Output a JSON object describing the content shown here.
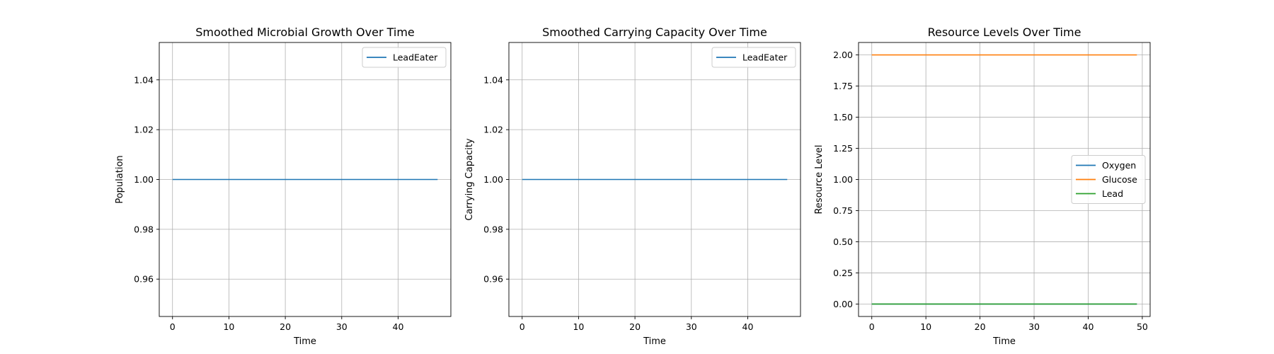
{
  "colors": {
    "background": "#ffffff",
    "grid": "#b0b0b0",
    "spine": "#000000",
    "legend_border": "#cccccc"
  },
  "chart_data": [
    {
      "type": "line",
      "title": "Smoothed Microbial Growth Over Time",
      "xlabel": "Time",
      "ylabel": "Population",
      "xlim": [
        -2.35,
        49.35
      ],
      "ylim": [
        0.945,
        1.055
      ],
      "xticks": [
        0,
        10,
        20,
        30,
        40
      ],
      "xtick_labels": [
        "0",
        "10",
        "20",
        "30",
        "40"
      ],
      "yticks": [
        0.96,
        0.98,
        1.0,
        1.02,
        1.04
      ],
      "ytick_labels": [
        "0.96",
        "0.98",
        "1.00",
        "1.02",
        "1.04"
      ],
      "grid": true,
      "legend": "top-right",
      "series": [
        {
          "name": "LeadEater",
          "color": "#1f77b4",
          "x": [
            0,
            47
          ],
          "y": [
            1.0,
            1.0
          ]
        }
      ]
    },
    {
      "type": "line",
      "title": "Smoothed Carrying Capacity Over Time",
      "xlabel": "Time",
      "ylabel": "Carrying Capacity",
      "xlim": [
        -2.35,
        49.35
      ],
      "ylim": [
        0.945,
        1.055
      ],
      "xticks": [
        0,
        10,
        20,
        30,
        40
      ],
      "xtick_labels": [
        "0",
        "10",
        "20",
        "30",
        "40"
      ],
      "yticks": [
        0.96,
        0.98,
        1.0,
        1.02,
        1.04
      ],
      "ytick_labels": [
        "0.96",
        "0.98",
        "1.00",
        "1.02",
        "1.04"
      ],
      "grid": true,
      "legend": "top-right",
      "series": [
        {
          "name": "LeadEater",
          "color": "#1f77b4",
          "x": [
            0,
            47
          ],
          "y": [
            1.0,
            1.0
          ]
        }
      ]
    },
    {
      "type": "line",
      "title": "Resource Levels Over Time",
      "xlabel": "Time",
      "ylabel": "Resource Level",
      "xlim": [
        -2.45,
        51.45
      ],
      "ylim": [
        -0.1,
        2.1
      ],
      "xticks": [
        0,
        10,
        20,
        30,
        40,
        50
      ],
      "xtick_labels": [
        "0",
        "10",
        "20",
        "30",
        "40",
        "50"
      ],
      "yticks": [
        0,
        0.25,
        0.5,
        0.75,
        1.0,
        1.25,
        1.5,
        1.75,
        2.0
      ],
      "ytick_labels": [
        "0.00",
        "0.25",
        "0.50",
        "0.75",
        "1.00",
        "1.25",
        "1.50",
        "1.75",
        "2.00"
      ],
      "grid": true,
      "legend": "center-right",
      "series": [
        {
          "name": "Oxygen",
          "color": "#1f77b4",
          "x": [
            0,
            49
          ],
          "y": [
            0.0,
            0.0
          ]
        },
        {
          "name": "Glucose",
          "color": "#ff7f0e",
          "x": [
            0,
            49
          ],
          "y": [
            2.0,
            2.0
          ]
        },
        {
          "name": "Lead",
          "color": "#2ca02c",
          "x": [
            0,
            49
          ],
          "y": [
            0.0,
            0.0
          ]
        }
      ]
    }
  ]
}
